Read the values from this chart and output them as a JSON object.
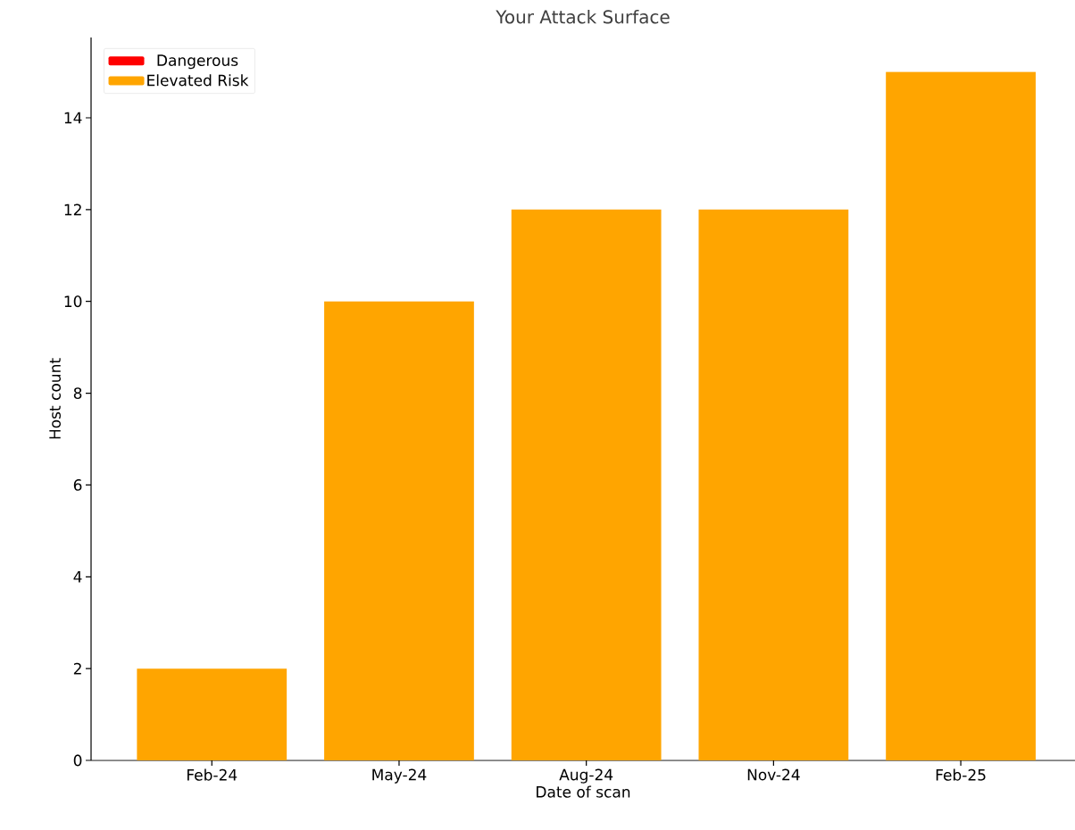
{
  "chart_data": {
    "type": "bar",
    "title": "Your Attack Surface",
    "xlabel": "Date of scan",
    "ylabel": "Host count",
    "categories": [
      "Feb-24",
      "May-24",
      "Aug-24",
      "Nov-24",
      "Feb-25"
    ],
    "stacked": true,
    "series": [
      {
        "name": "Dangerous",
        "color": "#ff0000",
        "values": [
          0,
          0,
          0,
          0,
          0
        ]
      },
      {
        "name": "Elevated Risk",
        "color": "#ffa500",
        "values": [
          2,
          10,
          12,
          12,
          15
        ]
      }
    ],
    "ylim": [
      0,
      15.75
    ],
    "yticks": [
      0,
      2,
      4,
      6,
      8,
      10,
      12,
      14
    ],
    "legend": "top left"
  }
}
